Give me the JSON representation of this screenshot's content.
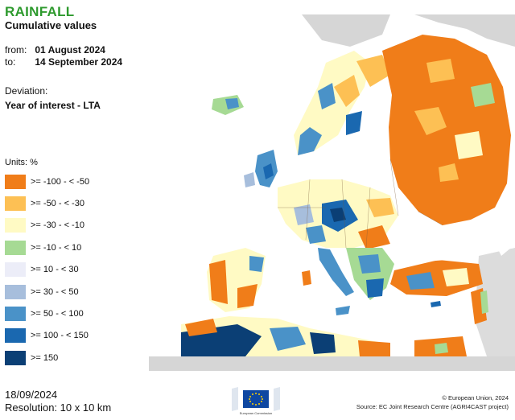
{
  "header": {
    "title": "RAINFALL",
    "subtitle": "Cumulative values",
    "from_label": "from:",
    "from_date": "01 August 2024",
    "to_label": "to:",
    "to_date": "14 September 2024",
    "deviation_label": "Deviation:",
    "deviation_value": "Year of interest - LTA"
  },
  "legend": {
    "units": "Units: %",
    "items": [
      {
        "label": ">= -100 - < -50",
        "color": "#f07d19"
      },
      {
        "label": ">= -50 - < -30",
        "color": "#fdc054"
      },
      {
        "label": ">= -30 - < -10",
        "color": "#fffac4"
      },
      {
        "label": ">= -10 - < 10",
        "color": "#a6da94"
      },
      {
        "label": ">= 10 - < 30",
        "color": "#ecedf8"
      },
      {
        "label": ">= 30 - < 50",
        "color": "#a7bedc"
      },
      {
        "label": ">= 50 - < 100",
        "color": "#4a92c8"
      },
      {
        "label": ">= 100 - < 150",
        "color": "#1a68b0"
      },
      {
        "label": ">= 150",
        "color": "#0b3f75"
      }
    ]
  },
  "footer": {
    "date": "18/09/2024",
    "resolution": "Resolution: 10 x 10 km",
    "copyright": "© European Union, 2024",
    "source": "Source: EC Joint Research Centre (AGRI4CAST project)",
    "logo_text": "European Commission"
  }
}
